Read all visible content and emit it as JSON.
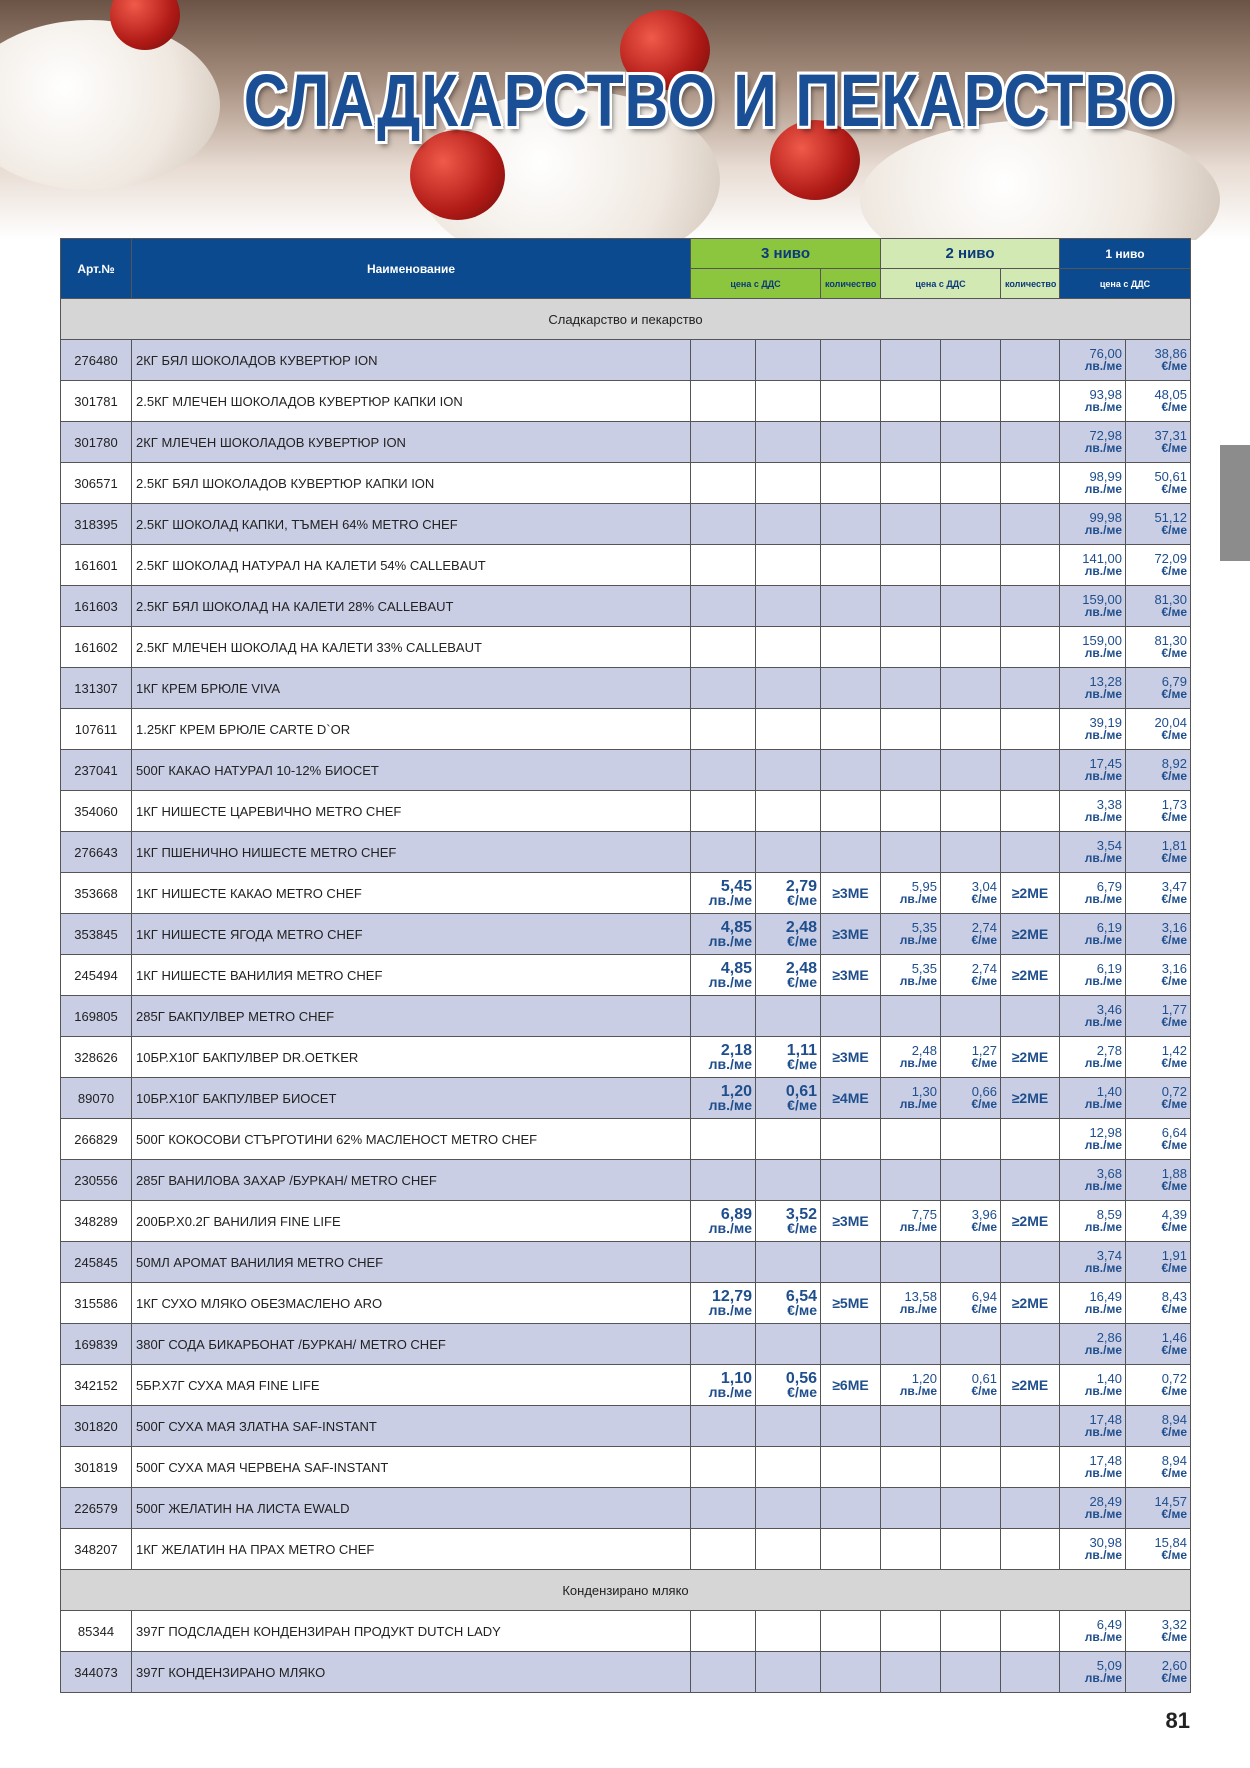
{
  "header": {
    "title": "СЛАДКАРСТВО И ПЕКАРСТВО"
  },
  "table": {
    "columns": {
      "art": "Арт.№",
      "name": "Наименование",
      "level3": "3 ниво",
      "level2": "2 ниво",
      "level1": "1 ниво",
      "price": "цена с ДДС",
      "qty": "количество"
    },
    "units": {
      "bgn": "лв./ме",
      "eur": "€/ме"
    },
    "sections": [
      {
        "title": "Сладкарство и пекарство",
        "rows": [
          {
            "art": "276480",
            "name": "2КГ БЯЛ ШОКОЛАДОВ КУВЕРТЮР ION",
            "l1": {
              "bgn": "76,00",
              "eur": "38,86"
            }
          },
          {
            "art": "301781",
            "name": "2.5КГ МЛЕЧЕН ШОКОЛАДОВ КУВЕРТЮР КАПКИ ION",
            "l1": {
              "bgn": "93,98",
              "eur": "48,05"
            }
          },
          {
            "art": "301780",
            "name": "2КГ МЛЕЧЕН ШОКОЛАДОВ КУВЕРТЮР ION",
            "l1": {
              "bgn": "72,98",
              "eur": "37,31"
            }
          },
          {
            "art": "306571",
            "name": "2.5КГ БЯЛ ШОКОЛАДОВ КУВЕРТЮР КАПКИ ION",
            "l1": {
              "bgn": "98,99",
              "eur": "50,61"
            }
          },
          {
            "art": "318395",
            "name": "2.5КГ ШОКОЛАД КАПКИ, ТЪМЕН 64% METRO CHEF",
            "l1": {
              "bgn": "99,98",
              "eur": "51,12"
            }
          },
          {
            "art": "161601",
            "name": "2.5КГ ШОКОЛАД НАТУРАЛ НА КАЛЕТИ 54% CALLEBAUT",
            "l1": {
              "bgn": "141,00",
              "eur": "72,09"
            }
          },
          {
            "art": "161603",
            "name": "2.5КГ БЯЛ ШОКОЛАД НА КАЛЕТИ 28% CALLEBAUT",
            "l1": {
              "bgn": "159,00",
              "eur": "81,30"
            }
          },
          {
            "art": "161602",
            "name": "2.5КГ МЛЕЧЕН ШОКОЛАД НА КАЛЕТИ 33% CALLEBAUT",
            "l1": {
              "bgn": "159,00",
              "eur": "81,30"
            }
          },
          {
            "art": "131307",
            "name": "1КГ КРЕМ БРЮЛЕ VIVA",
            "l1": {
              "bgn": "13,28",
              "eur": "6,79"
            }
          },
          {
            "art": "107611",
            "name": "1.25КГ КРЕМ БРЮЛЕ CARTE D`OR",
            "l1": {
              "bgn": "39,19",
              "eur": "20,04"
            }
          },
          {
            "art": "237041",
            "name": "500Г КАКАО НАТУРАЛ 10-12% БИОСЕТ",
            "l1": {
              "bgn": "17,45",
              "eur": "8,92"
            }
          },
          {
            "art": "354060",
            "name": "1КГ НИШЕСТЕ ЦАРЕВИЧНО METRO CHEF",
            "l1": {
              "bgn": "3,38",
              "eur": "1,73"
            }
          },
          {
            "art": "276643",
            "name": "1КГ ПШЕНИЧНО НИШЕСТЕ METRO CHEF",
            "l1": {
              "bgn": "3,54",
              "eur": "1,81"
            }
          },
          {
            "art": "353668",
            "name": "1КГ НИШЕСТЕ КАКАО METRO CHEF",
            "l3": {
              "bgn": "5,45",
              "eur": "2,79",
              "qty": "≥3МЕ"
            },
            "l2": {
              "bgn": "5,95",
              "eur": "3,04",
              "qty": "≥2МЕ"
            },
            "l1": {
              "bgn": "6,79",
              "eur": "3,47"
            }
          },
          {
            "art": "353845",
            "name": "1КГ НИШЕСТЕ ЯГОДА METRO CHEF",
            "l3": {
              "bgn": "4,85",
              "eur": "2,48",
              "qty": "≥3МЕ"
            },
            "l2": {
              "bgn": "5,35",
              "eur": "2,74",
              "qty": "≥2МЕ"
            },
            "l1": {
              "bgn": "6,19",
              "eur": "3,16"
            }
          },
          {
            "art": "245494",
            "name": "1КГ НИШЕСТЕ ВАНИЛИЯ METRO CHEF",
            "l3": {
              "bgn": "4,85",
              "eur": "2,48",
              "qty": "≥3МЕ"
            },
            "l2": {
              "bgn": "5,35",
              "eur": "2,74",
              "qty": "≥2МЕ"
            },
            "l1": {
              "bgn": "6,19",
              "eur": "3,16"
            }
          },
          {
            "art": "169805",
            "name": "285Г БАКПУЛВЕР METRO CHEF",
            "l1": {
              "bgn": "3,46",
              "eur": "1,77"
            }
          },
          {
            "art": "328626",
            "name": "10БР.Х10Г БАКПУЛВЕР DR.OETKER",
            "l3": {
              "bgn": "2,18",
              "eur": "1,11",
              "qty": "≥3МЕ"
            },
            "l2": {
              "bgn": "2,48",
              "eur": "1,27",
              "qty": "≥2МЕ"
            },
            "l1": {
              "bgn": "2,78",
              "eur": "1,42"
            }
          },
          {
            "art": "89070",
            "name": "10БР.Х10Г БАКПУЛВЕР БИОСЕТ",
            "l3": {
              "bgn": "1,20",
              "eur": "0,61",
              "qty": "≥4МЕ"
            },
            "l2": {
              "bgn": "1,30",
              "eur": "0,66",
              "qty": "≥2МЕ"
            },
            "l1": {
              "bgn": "1,40",
              "eur": "0,72"
            }
          },
          {
            "art": "266829",
            "name": "500Г КОКОСОВИ СТЪРГОТИНИ 62% МАСЛЕНОСТ METRO CHEF",
            "l1": {
              "bgn": "12,98",
              "eur": "6,64"
            }
          },
          {
            "art": "230556",
            "name": "285Г ВАНИЛОВА ЗАХАР /БУРКАН/ METRO CHEF",
            "l1": {
              "bgn": "3,68",
              "eur": "1,88"
            }
          },
          {
            "art": "348289",
            "name": "200БР.Х0.2Г ВАНИЛИЯ FINE LIFE",
            "l3": {
              "bgn": "6,89",
              "eur": "3,52",
              "qty": "≥3МЕ"
            },
            "l2": {
              "bgn": "7,75",
              "eur": "3,96",
              "qty": "≥2МЕ"
            },
            "l1": {
              "bgn": "8,59",
              "eur": "4,39"
            }
          },
          {
            "art": "245845",
            "name": "50МЛ АРОМАТ ВАНИЛИЯ METRO CHEF",
            "l1": {
              "bgn": "3,74",
              "eur": "1,91"
            }
          },
          {
            "art": "315586",
            "name": "1КГ СУХО МЛЯКО ОБЕЗМАСЛЕНО ARO",
            "l3": {
              "bgn": "12,79",
              "eur": "6,54",
              "qty": "≥5МЕ"
            },
            "l2": {
              "bgn": "13,58",
              "eur": "6,94",
              "qty": "≥2МЕ"
            },
            "l1": {
              "bgn": "16,49",
              "eur": "8,43"
            }
          },
          {
            "art": "169839",
            "name": "380Г СОДА БИКАРБОНАТ /БУРКАН/ METRO CHEF",
            "l1": {
              "bgn": "2,86",
              "eur": "1,46"
            }
          },
          {
            "art": "342152",
            "name": "5БР.Х7Г СУХА МАЯ FINE LIFE",
            "l3": {
              "bgn": "1,10",
              "eur": "0,56",
              "qty": "≥6МЕ"
            },
            "l2": {
              "bgn": "1,20",
              "eur": "0,61",
              "qty": "≥2МЕ"
            },
            "l1": {
              "bgn": "1,40",
              "eur": "0,72"
            }
          },
          {
            "art": "301820",
            "name": "500Г СУХА МАЯ ЗЛАТНА SAF-INSTANT",
            "l1": {
              "bgn": "17,48",
              "eur": "8,94"
            }
          },
          {
            "art": "301819",
            "name": "500Г СУХА МАЯ ЧЕРВЕНА SAF-INSTANT",
            "l1": {
              "bgn": "17,48",
              "eur": "8,94"
            }
          },
          {
            "art": "226579",
            "name": "500Г ЖЕЛАТИН НА ЛИСТА EWALD",
            "l1": {
              "bgn": "28,49",
              "eur": "14,57"
            }
          },
          {
            "art": "348207",
            "name": "1КГ ЖЕЛАТИН НА ПРАХ METRO CHEF",
            "l1": {
              "bgn": "30,98",
              "eur": "15,84"
            }
          }
        ]
      },
      {
        "title": "Кондензирано мляко",
        "rows": [
          {
            "art": "85344",
            "name": "397Г ПОДСЛАДЕН КОНДЕНЗИРАН ПРОДУКТ DUTCH LADY",
            "l1": {
              "bgn": "6,49",
              "eur": "3,32"
            }
          },
          {
            "art": "344073",
            "name": "397Г КОНДЕНЗИРАНО МЛЯКО",
            "l1": {
              "bgn": "5,09",
              "eur": "2,60"
            }
          }
        ]
      }
    ]
  },
  "footer": {
    "page_number": "81"
  }
}
